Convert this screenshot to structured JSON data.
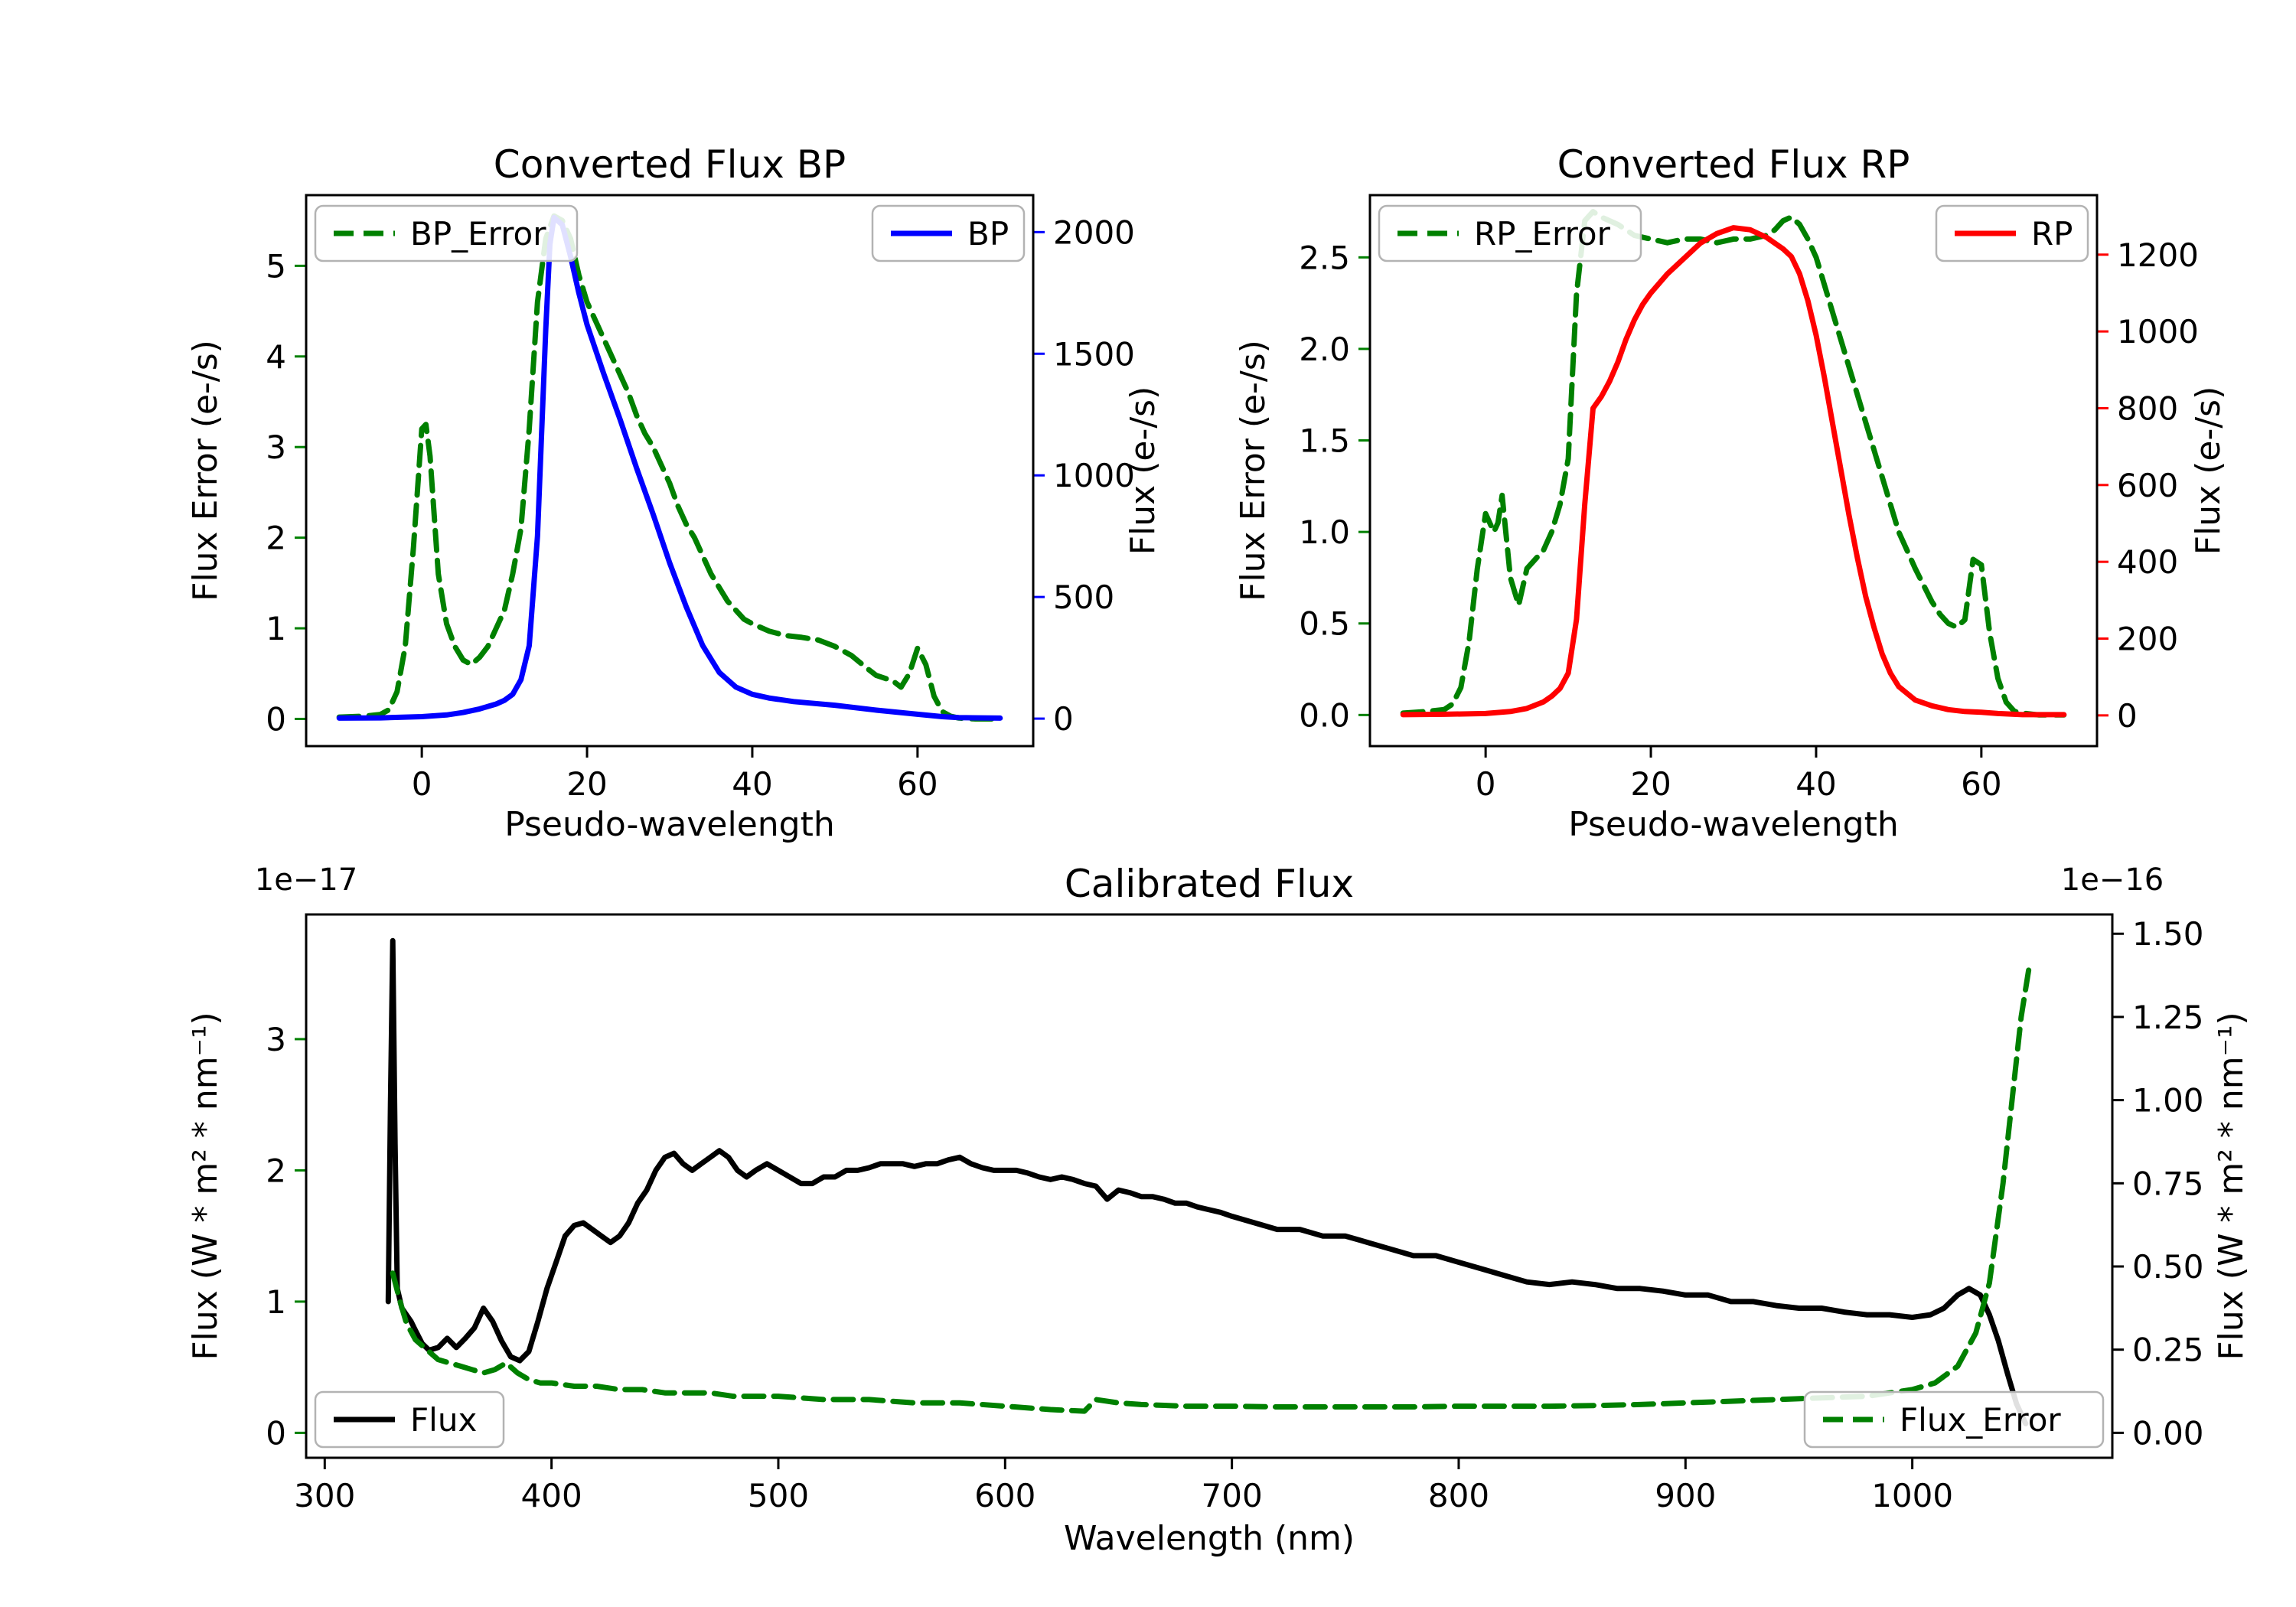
{
  "figure": {
    "background": "#ffffff"
  },
  "chart_data": [
    {
      "id": "bp",
      "type": "line",
      "title": "Converted Flux BP",
      "xlabel": "Pseudo-wavelength",
      "ylabel_left": "Flux Error (e-/s)",
      "ylabel_right": "Flux (e-/s)",
      "axis_color_left": "#008000",
      "axis_color_right": "#0000ff",
      "grid": false,
      "xlim": [
        -14,
        74
      ],
      "xticks": {
        "values": [
          0,
          20,
          40,
          60
        ],
        "labels": [
          "0",
          "20",
          "40",
          "60"
        ]
      },
      "ylim_left": [
        -0.3,
        5.78
      ],
      "yticks_left": {
        "values": [
          0,
          1,
          2,
          3,
          4,
          5
        ],
        "labels": [
          "0",
          "1",
          "2",
          "3",
          "4",
          "5"
        ]
      },
      "ylim_right": [
        -113,
        2152
      ],
      "yticks_right": {
        "values": [
          0,
          500,
          1000,
          1500,
          2000
        ],
        "labels": [
          "0",
          "500",
          "1000",
          "1500",
          "2000"
        ]
      },
      "series": [
        {
          "name": "BP_Error",
          "axis": "left",
          "color": "#008000",
          "dashed": true,
          "x": [
            -10,
            -7,
            -5,
            -4,
            -3,
            -2,
            -1,
            0,
            0.5,
            1,
            2,
            3,
            4,
            5,
            6,
            7,
            8,
            9,
            10,
            11,
            12,
            13,
            14,
            15,
            16,
            17,
            18,
            19,
            20,
            21,
            22,
            23,
            24,
            25,
            26,
            27,
            28,
            29,
            30,
            31,
            32,
            33,
            34,
            35,
            36,
            37,
            38,
            39,
            40,
            42,
            44,
            46,
            48,
            50,
            52,
            54,
            55,
            56,
            57,
            58,
            59,
            60,
            61,
            62,
            63,
            64,
            65,
            67,
            70
          ],
          "y": [
            0.02,
            0.03,
            0.05,
            0.1,
            0.3,
            0.8,
            1.9,
            3.2,
            3.25,
            2.9,
            1.6,
            1.05,
            0.8,
            0.65,
            0.6,
            0.68,
            0.8,
            1.0,
            1.2,
            1.6,
            2.1,
            3.2,
            4.6,
            5.3,
            5.55,
            5.5,
            5.3,
            4.9,
            4.6,
            4.4,
            4.2,
            4.0,
            3.8,
            3.6,
            3.35,
            3.15,
            3.0,
            2.8,
            2.6,
            2.35,
            2.15,
            2.0,
            1.8,
            1.6,
            1.45,
            1.3,
            1.2,
            1.1,
            1.05,
            0.97,
            0.92,
            0.9,
            0.87,
            0.8,
            0.7,
            0.55,
            0.48,
            0.45,
            0.42,
            0.35,
            0.5,
            0.78,
            0.6,
            0.25,
            0.08,
            0.03,
            0.01,
            0.0,
            0.0
          ]
        },
        {
          "name": "BP",
          "axis": "right",
          "color": "#0000ff",
          "dashed": false,
          "x": [
            -10,
            -5,
            0,
            3,
            5,
            7,
            9,
            10,
            11,
            12,
            13,
            14,
            15,
            15.5,
            16,
            17,
            18,
            19,
            20,
            22,
            24,
            26,
            28,
            30,
            32,
            34,
            36,
            38,
            40,
            42,
            45,
            50,
            55,
            60,
            63,
            65,
            70
          ],
          "y": [
            2,
            3,
            8,
            15,
            25,
            40,
            60,
            75,
            100,
            160,
            300,
            750,
            1600,
            1950,
            2060,
            2030,
            1900,
            1750,
            1620,
            1420,
            1230,
            1030,
            840,
            640,
            460,
            300,
            190,
            130,
            100,
            85,
            70,
            55,
            35,
            18,
            8,
            4,
            2
          ]
        }
      ],
      "legends": [
        {
          "label": "BP_Error",
          "series": 0,
          "position": "upper-left"
        },
        {
          "label": "BP",
          "series": 1,
          "position": "upper-right"
        }
      ]
    },
    {
      "id": "rp",
      "type": "line",
      "title": "Converted Flux RP",
      "xlabel": "Pseudo-wavelength",
      "ylabel_left": "Flux Error (e-/s)",
      "ylabel_right": "Flux (e-/s)",
      "axis_color_left": "#008000",
      "axis_color_right": "#ff0000",
      "grid": false,
      "xlim": [
        -14,
        74
      ],
      "xticks": {
        "values": [
          0,
          20,
          40,
          60
        ],
        "labels": [
          "0",
          "20",
          "40",
          "60"
        ]
      },
      "ylim_left": [
        -0.17,
        2.84
      ],
      "yticks_left": {
        "values": [
          0,
          0.5,
          1.0,
          1.5,
          2.0,
          2.5
        ],
        "labels": [
          "0.0",
          "0.5",
          "1.0",
          "1.5",
          "2.0",
          "2.5"
        ]
      },
      "ylim_right": [
        -80,
        1355
      ],
      "yticks_right": {
        "values": [
          0,
          200,
          400,
          600,
          800,
          1000,
          1200
        ],
        "labels": [
          "0",
          "200",
          "400",
          "600",
          "800",
          "1000",
          "1200"
        ]
      },
      "series": [
        {
          "name": "RP_Error",
          "axis": "left",
          "color": "#008000",
          "dashed": true,
          "x": [
            -10,
            -7,
            -5,
            -4,
            -3,
            -2,
            -1,
            0,
            1,
            1.5,
            2,
            3,
            4,
            5,
            6,
            7,
            8,
            9,
            10,
            11,
            12,
            13,
            14,
            15,
            16,
            17,
            18,
            20,
            22,
            24,
            26,
            28,
            30,
            32,
            34,
            35,
            36,
            37,
            38,
            39,
            40,
            41,
            42,
            43,
            44,
            45,
            46,
            47,
            48,
            49,
            50,
            52,
            54,
            55,
            56,
            57,
            58,
            59,
            60,
            61,
            62,
            63,
            64,
            65,
            67,
            70
          ],
          "y": [
            0.01,
            0.02,
            0.03,
            0.06,
            0.15,
            0.4,
            0.8,
            1.1,
            1.0,
            1.05,
            1.2,
            0.75,
            0.6,
            0.8,
            0.85,
            0.9,
            1.0,
            1.15,
            1.4,
            2.3,
            2.7,
            2.75,
            2.72,
            2.7,
            2.68,
            2.65,
            2.62,
            2.6,
            2.58,
            2.6,
            2.6,
            2.58,
            2.6,
            2.6,
            2.62,
            2.65,
            2.7,
            2.72,
            2.68,
            2.6,
            2.5,
            2.35,
            2.2,
            2.05,
            1.9,
            1.75,
            1.6,
            1.45,
            1.3,
            1.15,
            1.0,
            0.8,
            0.62,
            0.55,
            0.5,
            0.48,
            0.52,
            0.85,
            0.82,
            0.45,
            0.2,
            0.07,
            0.02,
            0.01,
            0.0,
            0.0
          ]
        },
        {
          "name": "RP",
          "axis": "right",
          "color": "#ff0000",
          "dashed": false,
          "x": [
            -10,
            -5,
            0,
            3,
            5,
            7,
            8,
            9,
            10,
            11,
            12,
            13,
            14,
            15,
            16,
            17,
            18,
            19,
            20,
            22,
            24,
            26,
            28,
            30,
            32,
            34,
            36,
            37,
            38,
            39,
            40,
            41,
            42,
            43,
            44,
            45,
            46,
            47,
            48,
            49,
            50,
            52,
            54,
            56,
            58,
            60,
            62,
            65,
            70
          ],
          "y": [
            2,
            3,
            5,
            10,
            18,
            35,
            50,
            70,
            110,
            250,
            550,
            800,
            830,
            870,
            920,
            980,
            1030,
            1070,
            1100,
            1150,
            1190,
            1230,
            1255,
            1270,
            1265,
            1245,
            1215,
            1195,
            1150,
            1080,
            990,
            880,
            760,
            640,
            520,
            410,
            310,
            230,
            160,
            110,
            75,
            40,
            25,
            15,
            10,
            8,
            5,
            2,
            2
          ]
        }
      ],
      "legends": [
        {
          "label": "RP_Error",
          "series": 0,
          "position": "upper-left"
        },
        {
          "label": "RP",
          "series": 1,
          "position": "upper-right"
        }
      ]
    },
    {
      "id": "cal",
      "type": "line",
      "title": "Calibrated Flux",
      "xlabel": "Wavelength (nm)",
      "ylabel_left": "Flux (W * m² * nm⁻¹)",
      "ylabel_right": "Flux (W * m² * nm⁻¹)",
      "offset_left": "1e−17",
      "offset_right": "1e−16",
      "axis_color_left": "#008000",
      "axis_color_right": "#000000",
      "grid": false,
      "xlim": [
        291.8,
        1088.2
      ],
      "xticks": {
        "values": [
          300,
          400,
          500,
          600,
          700,
          800,
          900,
          1000
        ],
        "labels": [
          "300",
          "400",
          "500",
          "600",
          "700",
          "800",
          "900",
          "1000"
        ]
      },
      "ylim_left": [
        -0.19,
        3.95
      ],
      "yticks_left": {
        "values": [
          0,
          1,
          2,
          3
        ],
        "labels": [
          "0",
          "1",
          "2",
          "3"
        ]
      },
      "ylim_right": [
        -0.075,
        1.558
      ],
      "yticks_right": {
        "values": [
          0,
          0.25,
          0.5,
          0.75,
          1.0,
          1.25,
          1.5
        ],
        "labels": [
          "0.00",
          "0.25",
          "0.50",
          "0.75",
          "1.00",
          "1.25",
          "1.50"
        ]
      },
      "series": [
        {
          "name": "Flux",
          "axis": "left",
          "color": "#000000",
          "dashed": false,
          "x": [
            328,
            329,
            330,
            331,
            332,
            334,
            336,
            338,
            340,
            343,
            346,
            350,
            354,
            358,
            362,
            366,
            370,
            374,
            378,
            382,
            386,
            390,
            394,
            398,
            402,
            406,
            410,
            414,
            418,
            422,
            426,
            430,
            434,
            438,
            442,
            446,
            450,
            454,
            458,
            462,
            466,
            470,
            474,
            478,
            482,
            486,
            490,
            495,
            500,
            505,
            510,
            515,
            520,
            525,
            530,
            535,
            540,
            545,
            550,
            555,
            560,
            565,
            570,
            575,
            580,
            585,
            590,
            595,
            600,
            605,
            610,
            615,
            620,
            625,
            630,
            635,
            640,
            645,
            650,
            655,
            660,
            665,
            670,
            675,
            680,
            685,
            690,
            695,
            700,
            710,
            720,
            730,
            740,
            750,
            760,
            770,
            780,
            790,
            800,
            810,
            820,
            830,
            840,
            850,
            860,
            870,
            880,
            890,
            900,
            910,
            920,
            930,
            940,
            950,
            960,
            970,
            980,
            990,
            1000,
            1008,
            1014,
            1020,
            1025,
            1030,
            1034,
            1038,
            1042,
            1046,
            1050
          ],
          "y": [
            1.0,
            2.5,
            3.75,
            2.2,
            1.1,
            0.95,
            0.9,
            0.85,
            0.78,
            0.68,
            0.63,
            0.65,
            0.72,
            0.65,
            0.72,
            0.8,
            0.95,
            0.85,
            0.7,
            0.58,
            0.55,
            0.62,
            0.85,
            1.1,
            1.3,
            1.5,
            1.58,
            1.6,
            1.55,
            1.5,
            1.45,
            1.5,
            1.6,
            1.75,
            1.85,
            2.0,
            2.1,
            2.13,
            2.05,
            2.0,
            2.05,
            2.1,
            2.15,
            2.1,
            2.0,
            1.95,
            2.0,
            2.05,
            2.0,
            1.95,
            1.9,
            1.9,
            1.95,
            1.95,
            2.0,
            2.0,
            2.02,
            2.05,
            2.05,
            2.05,
            2.03,
            2.05,
            2.05,
            2.08,
            2.1,
            2.05,
            2.02,
            2.0,
            2.0,
            2.0,
            1.98,
            1.95,
            1.93,
            1.95,
            1.93,
            1.9,
            1.88,
            1.78,
            1.85,
            1.83,
            1.8,
            1.8,
            1.78,
            1.75,
            1.75,
            1.72,
            1.7,
            1.68,
            1.65,
            1.6,
            1.55,
            1.55,
            1.5,
            1.5,
            1.45,
            1.4,
            1.35,
            1.35,
            1.3,
            1.25,
            1.2,
            1.15,
            1.13,
            1.15,
            1.13,
            1.1,
            1.1,
            1.08,
            1.05,
            1.05,
            1.0,
            1.0,
            0.97,
            0.95,
            0.95,
            0.92,
            0.9,
            0.9,
            0.88,
            0.9,
            0.95,
            1.05,
            1.1,
            1.05,
            0.9,
            0.7,
            0.45,
            0.22,
            0.07
          ]
        },
        {
          "name": "Flux_Error",
          "axis": "right",
          "color": "#008000",
          "dashed": true,
          "x": [
            330,
            333,
            336,
            340,
            345,
            350,
            355,
            360,
            365,
            370,
            375,
            380,
            385,
            390,
            395,
            400,
            410,
            420,
            430,
            440,
            450,
            460,
            470,
            480,
            490,
            500,
            520,
            540,
            560,
            580,
            600,
            620,
            635,
            640,
            645,
            650,
            660,
            680,
            700,
            720,
            740,
            760,
            780,
            800,
            820,
            840,
            860,
            880,
            900,
            920,
            940,
            960,
            980,
            1000,
            1010,
            1020,
            1028,
            1034,
            1040,
            1044,
            1048,
            1052
          ],
          "y": [
            0.48,
            0.4,
            0.33,
            0.28,
            0.25,
            0.22,
            0.21,
            0.2,
            0.19,
            0.18,
            0.19,
            0.21,
            0.18,
            0.16,
            0.15,
            0.15,
            0.14,
            0.14,
            0.13,
            0.13,
            0.12,
            0.12,
            0.12,
            0.11,
            0.11,
            0.11,
            0.1,
            0.1,
            0.09,
            0.09,
            0.08,
            0.07,
            0.065,
            0.1,
            0.095,
            0.09,
            0.085,
            0.08,
            0.08,
            0.078,
            0.078,
            0.078,
            0.078,
            0.08,
            0.08,
            0.08,
            0.082,
            0.085,
            0.09,
            0.095,
            0.1,
            0.105,
            0.11,
            0.13,
            0.15,
            0.2,
            0.3,
            0.45,
            0.75,
            1.0,
            1.25,
            1.42
          ]
        }
      ],
      "legends": [
        {
          "label": "Flux",
          "series": 0,
          "position": "lower-left"
        },
        {
          "label": "Flux_Error",
          "series": 1,
          "position": "lower-right"
        }
      ]
    }
  ]
}
